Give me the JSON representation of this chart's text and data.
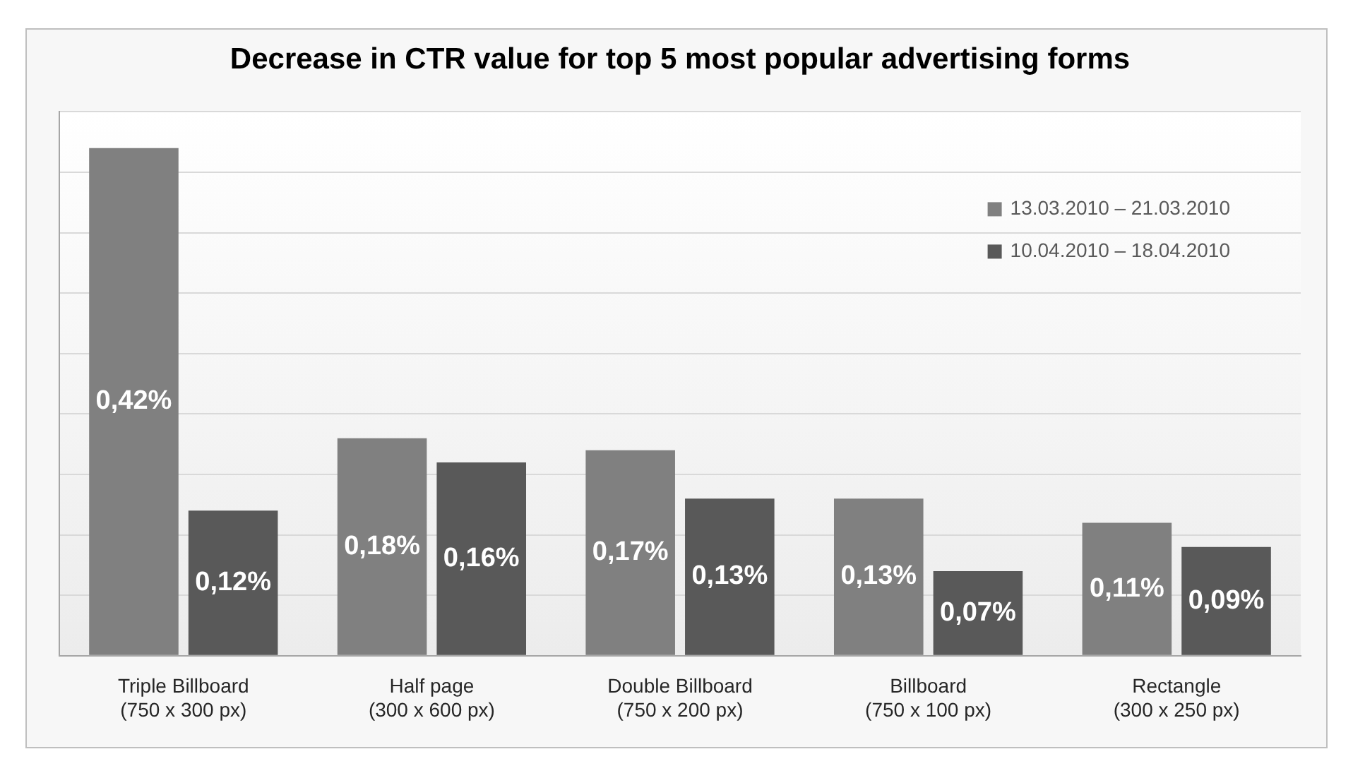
{
  "chart_data": {
    "type": "bar",
    "title": "Decrease in CTR value for top 5 most popular advertising forms",
    "categories": [
      "Triple Billboard\n(750 x 300 px)",
      "Half page\n(300 x 600 px)",
      "Double Billboard\n(750 x 200 px)",
      "Billboard\n(750 x 100 px)",
      "Rectangle\n(300 x 250 px)"
    ],
    "series": [
      {
        "name": "13.03.2010 – 21.03.2010",
        "color": "#808080",
        "values": [
          0.42,
          0.18,
          0.17,
          0.13,
          0.11
        ],
        "value_labels": [
          "0,42%",
          "0,18%",
          "0,17%",
          "0,13%",
          "0,11%"
        ]
      },
      {
        "name": "10.04.2010 – 18.04.2010",
        "color": "#595959",
        "values": [
          0.12,
          0.16,
          0.13,
          0.07,
          0.09
        ],
        "value_labels": [
          "0,12%",
          "0,16%",
          "0,13%",
          "0,07%",
          "0,09%"
        ]
      }
    ],
    "ylim": [
      0,
      0.45
    ],
    "yticks": [
      {
        "value": 0,
        "label": null
      },
      {
        "value": 0.05,
        "label": null
      },
      {
        "value": 0.1,
        "label": null
      },
      {
        "value": 0.15,
        "label": null
      },
      {
        "value": 0.2,
        "label": null
      },
      {
        "value": 0.25,
        "label": null
      },
      {
        "value": 0.3,
        "label": null
      },
      {
        "value": 0.35,
        "label": null
      },
      {
        "value": 0.4,
        "label": null
      },
      {
        "value": 0.45,
        "label": null
      }
    ],
    "grid": "y",
    "tick_labels": "x",
    "legend": "top right"
  }
}
